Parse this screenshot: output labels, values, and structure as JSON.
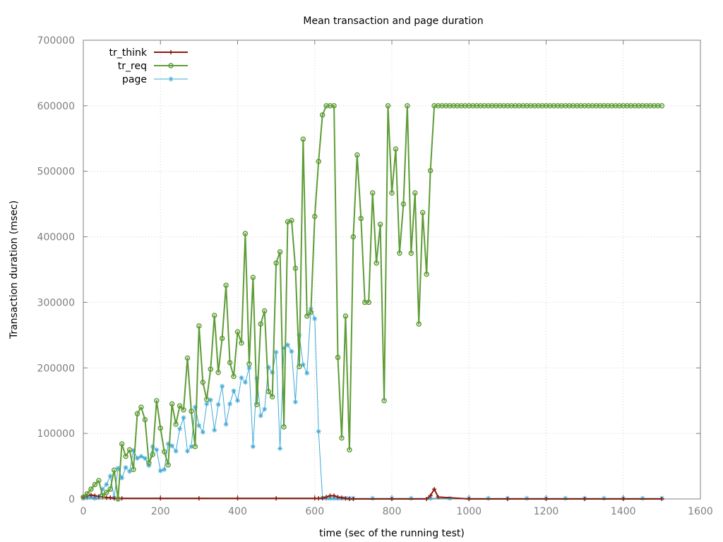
{
  "chart_data": {
    "type": "line",
    "title": "Mean transaction and page duration",
    "xlabel": "time (sec of the running test)",
    "ylabel": "Transaction duration (msec)",
    "xlim": [
      0,
      1600
    ],
    "ylim": [
      0,
      700000
    ],
    "x_ticks": [
      "0",
      "200",
      "400",
      "600",
      "800",
      "1000",
      "1200",
      "1400",
      "1600"
    ],
    "y_ticks": [
      "0",
      "100000",
      "200000",
      "300000",
      "400000",
      "500000",
      "600000",
      "700000"
    ],
    "grid": true,
    "legend_position": "top-left",
    "series": [
      {
        "name": "tr_think",
        "color": "#8b1a0e",
        "marker": "plus",
        "x": [
          0,
          10,
          20,
          30,
          40,
          50,
          60,
          70,
          80,
          90,
          100,
          200,
          300,
          400,
          500,
          600,
          610,
          620,
          630,
          640,
          650,
          660,
          670,
          680,
          690,
          700,
          800,
          890,
          900,
          910,
          920,
          1000,
          1100,
          1200,
          1300,
          1400,
          1500
        ],
        "y": [
          3000,
          5000,
          6000,
          5000,
          4000,
          3000,
          2000,
          2000,
          1000,
          1000,
          1000,
          1000,
          1000,
          1000,
          1000,
          1000,
          1000,
          1000,
          3000,
          5000,
          5000,
          3000,
          2000,
          1000,
          0,
          0,
          0,
          0,
          5000,
          15000,
          3000,
          0,
          0,
          0,
          0,
          0,
          0
        ]
      },
      {
        "name": "tr_req",
        "color": "#5e9c36",
        "marker": "circle",
        "x": [
          0,
          10,
          20,
          30,
          40,
          50,
          60,
          70,
          80,
          90,
          100,
          110,
          120,
          130,
          140,
          150,
          160,
          170,
          180,
          190,
          200,
          210,
          220,
          230,
          240,
          250,
          260,
          270,
          280,
          290,
          300,
          310,
          320,
          330,
          340,
          350,
          360,
          370,
          380,
          390,
          400,
          410,
          420,
          430,
          440,
          450,
          460,
          470,
          480,
          490,
          500,
          510,
          520,
          530,
          540,
          550,
          560,
          570,
          580,
          590,
          600,
          610,
          620,
          630,
          640,
          650,
          660,
          670,
          680,
          690,
          700,
          710,
          720,
          730,
          740,
          750,
          760,
          770,
          780,
          790,
          800,
          810,
          820,
          830,
          840,
          850,
          860,
          870,
          880,
          890,
          900,
          910,
          920,
          930,
          940,
          950,
          960,
          970,
          980,
          990,
          1000,
          1010,
          1020,
          1030,
          1040,
          1050,
          1060,
          1070,
          1080,
          1090,
          1100,
          1110,
          1120,
          1130,
          1140,
          1150,
          1160,
          1170,
          1180,
          1190,
          1200,
          1210,
          1220,
          1230,
          1240,
          1250,
          1260,
          1270,
          1280,
          1290,
          1300,
          1310,
          1320,
          1330,
          1340,
          1350,
          1360,
          1370,
          1380,
          1390,
          1400,
          1410,
          1420,
          1430,
          1440,
          1450,
          1460,
          1470,
          1480,
          1490,
          1500
        ],
        "y": [
          3000,
          8000,
          15000,
          22000,
          28000,
          5000,
          10000,
          15000,
          44000,
          0,
          84000,
          65000,
          75000,
          45000,
          130000,
          140000,
          121000,
          55000,
          68000,
          150000,
          108000,
          72000,
          52000,
          145000,
          114000,
          142000,
          136000,
          215000,
          134000,
          80000,
          264000,
          178000,
          152000,
          198000,
          280000,
          193000,
          245000,
          326000,
          208000,
          187000,
          255000,
          238000,
          405000,
          206000,
          338000,
          144000,
          267000,
          287000,
          164000,
          156000,
          360000,
          377000,
          110000,
          423000,
          425000,
          352000,
          202000,
          549000,
          279000,
          285000,
          431000,
          515000,
          586000,
          600000,
          600000,
          600000,
          216000,
          93000,
          279000,
          75000,
          400000,
          525000,
          428000,
          300000,
          300000,
          467000,
          360000,
          419000,
          150000,
          600000,
          467000,
          534000,
          375000,
          450000,
          600000,
          375000,
          467000,
          267000,
          437000,
          343000,
          501000,
          600000,
          600000,
          600000,
          600000,
          600000,
          600000,
          600000,
          600000,
          600000,
          600000,
          600000,
          600000,
          600000,
          600000,
          600000,
          600000,
          600000,
          600000,
          600000,
          600000,
          600000,
          600000,
          600000,
          600000,
          600000,
          600000,
          600000,
          600000,
          600000,
          600000,
          600000,
          600000,
          600000,
          600000,
          600000,
          600000,
          600000,
          600000,
          600000,
          600000,
          600000,
          600000,
          600000,
          600000,
          600000,
          600000,
          600000,
          600000,
          600000,
          600000,
          600000,
          600000,
          600000,
          600000,
          600000,
          600000,
          600000,
          600000,
          600000,
          600000
        ]
      },
      {
        "name": "page",
        "color": "#3fa9d6",
        "marker": "star",
        "x": [
          0,
          10,
          20,
          30,
          40,
          50,
          60,
          70,
          80,
          90,
          100,
          110,
          120,
          130,
          140,
          150,
          160,
          170,
          180,
          190,
          200,
          210,
          220,
          230,
          240,
          250,
          260,
          270,
          280,
          290,
          300,
          310,
          320,
          330,
          340,
          350,
          360,
          370,
          380,
          390,
          400,
          410,
          420,
          430,
          440,
          450,
          460,
          470,
          480,
          490,
          500,
          510,
          520,
          530,
          540,
          550,
          560,
          570,
          580,
          590,
          600,
          610,
          620,
          630,
          640,
          650,
          660,
          670,
          680,
          690,
          700,
          750,
          800,
          850,
          900,
          950,
          1000,
          1050,
          1100,
          1150,
          1200,
          1250,
          1300,
          1350,
          1400,
          1450,
          1500
        ],
        "y": [
          1000,
          2000,
          3000,
          1000,
          2000,
          15000,
          22000,
          35000,
          2000,
          47000,
          32000,
          48000,
          42000,
          74000,
          62000,
          65000,
          62000,
          51000,
          80000,
          75000,
          43000,
          45000,
          84000,
          81000,
          73000,
          107000,
          124000,
          73000,
          80000,
          140000,
          112000,
          102000,
          145000,
          151000,
          105000,
          144000,
          172000,
          114000,
          145000,
          165000,
          150000,
          185000,
          178000,
          200000,
          80000,
          184000,
          127000,
          137000,
          201000,
          193000,
          224000,
          77000,
          230000,
          235000,
          225000,
          148000,
          250000,
          205000,
          192000,
          290000,
          275000,
          103000,
          2000,
          1000,
          1000,
          1000,
          1000,
          1000,
          1000,
          1000,
          1000,
          1000,
          1000,
          1000,
          1000,
          1000,
          1000,
          1000,
          1000,
          1000,
          1000,
          1000,
          1000,
          1000,
          1000,
          1000,
          1000
        ]
      }
    ]
  }
}
